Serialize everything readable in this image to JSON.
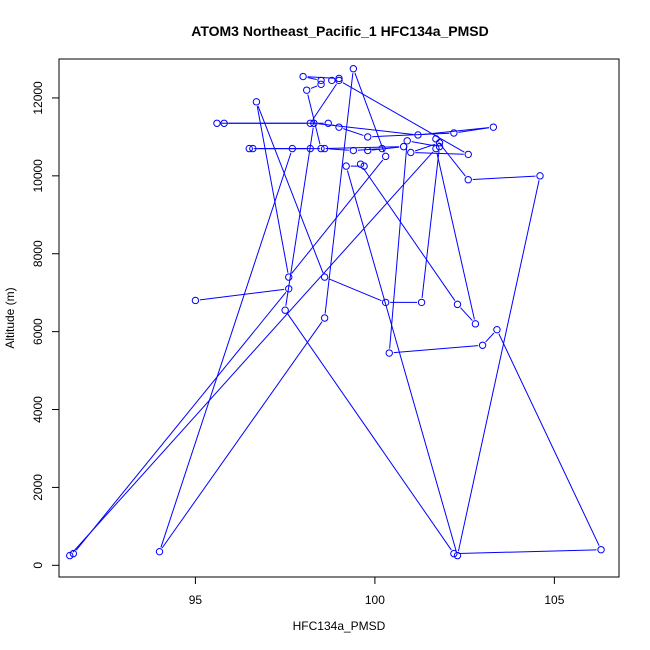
{
  "chart_data": {
    "type": "line",
    "title": "ATOM3 Northeast_Pacific_1 HFC134a_PMSD",
    "xlabel": "HFC134a_PMSD",
    "ylabel": "Altitude (m)",
    "xlim": [
      91.2,
      106.8
    ],
    "ylim": [
      -300,
      13000
    ],
    "xticks": [
      95,
      100,
      105
    ],
    "yticks": [
      0,
      2000,
      4000,
      6000,
      8000,
      10000,
      12000
    ],
    "grid": false,
    "color": "#0000ff",
    "markers": "open-circle",
    "x": [
      98.8,
      99.0,
      98.0,
      98.5,
      98.5,
      98.1,
      98.5,
      100.8,
      99.8,
      100.2,
      99.4,
      98.6,
      96.5,
      96.6,
      98.2,
      97.7,
      94.0,
      98.6,
      99.4,
      100.3,
      97.6,
      96.7,
      98.6,
      100.3,
      101.3,
      101.8,
      100.9,
      100.4,
      103.0,
      103.4,
      106.3,
      102.2,
      97.5,
      98.3,
      101.2,
      103.3,
      102.2,
      99.8,
      99.0,
      98.7,
      95.8,
      95.6,
      98.2,
      99.0,
      102.6,
      101.0,
      101.8,
      101.7,
      102.6,
      104.6,
      102.3,
      99.2,
      99.7,
      99.6,
      102.3,
      102.8,
      101.7,
      91.5,
      91.6,
      97.6,
      95.0
    ],
    "y": [
      12450,
      12500,
      12550,
      12450,
      12350,
      12200,
      10700,
      10750,
      10650,
      10700,
      10650,
      10700,
      10700,
      10700,
      10700,
      10700,
      350,
      6350,
      12750,
      10500,
      7400,
      11900,
      7400,
      6750,
      6750,
      10750,
      10900,
      5450,
      5650,
      6050,
      400,
      300,
      6550,
      11350,
      11050,
      11250,
      11100,
      11000,
      11250,
      11350,
      11350,
      11350,
      11350,
      12450,
      10550,
      10600,
      10850,
      10950,
      9900,
      10000,
      250,
      10250,
      10250,
      10300,
      6700,
      6200,
      10700,
      250,
      300,
      7100,
      6800
    ]
  }
}
